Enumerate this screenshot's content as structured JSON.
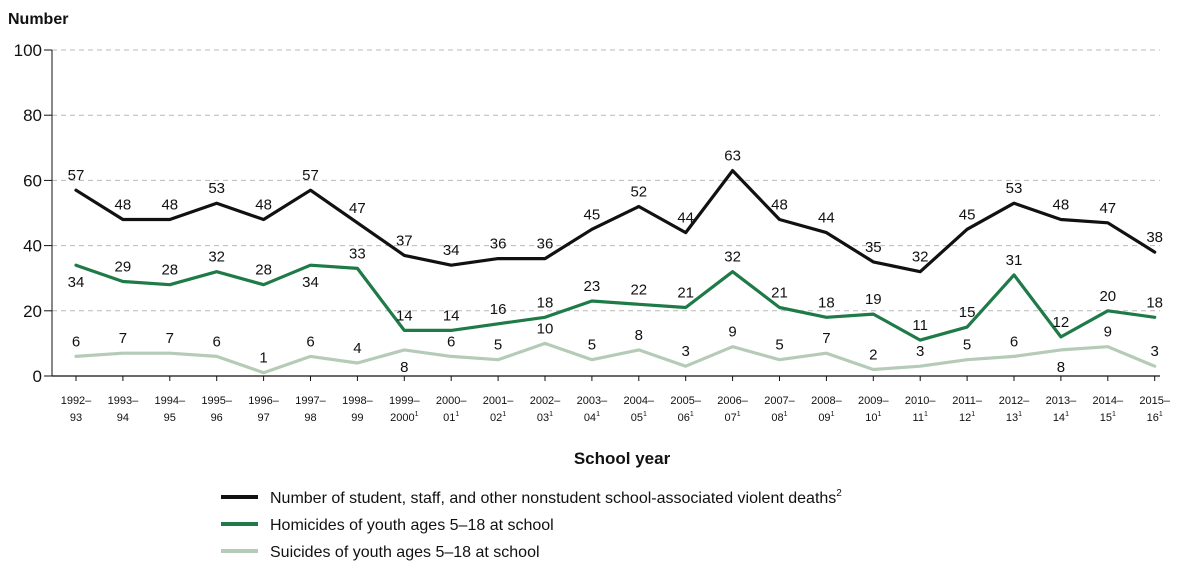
{
  "chart_data": {
    "type": "line",
    "ylabel": "Number",
    "xlabel": "School year",
    "ylim": [
      0,
      100
    ],
    "yticks": [
      "0",
      "20",
      "40",
      "60",
      "80",
      "100"
    ],
    "grid": "horizontal dashed",
    "legend_position": "bottom",
    "categories": [
      [
        "1992–",
        "93"
      ],
      [
        "1993–",
        "94"
      ],
      [
        "1994–",
        "95"
      ],
      [
        "1995–",
        "96"
      ],
      [
        "1996–",
        "97"
      ],
      [
        "1997–",
        "98"
      ],
      [
        "1998–",
        "99"
      ],
      [
        "1999–",
        "2000",
        "1"
      ],
      [
        "2000–",
        "01",
        "1"
      ],
      [
        "2001–",
        "02",
        "1"
      ],
      [
        "2002–",
        "03",
        "1"
      ],
      [
        "2003–",
        "04",
        "1"
      ],
      [
        "2004–",
        "05",
        "1"
      ],
      [
        "2005–",
        "06",
        "1"
      ],
      [
        "2006–",
        "07",
        "1"
      ],
      [
        "2007–",
        "08",
        "1"
      ],
      [
        "2008–",
        "09",
        "1"
      ],
      [
        "2009–",
        "10",
        "1"
      ],
      [
        "2010–",
        "11",
        "1"
      ],
      [
        "2011–",
        "12",
        "1"
      ],
      [
        "2012–",
        "13",
        "1"
      ],
      [
        "2013–",
        "14",
        "1"
      ],
      [
        "2014–",
        "15",
        "1"
      ],
      [
        "2015–",
        "16",
        "1"
      ]
    ],
    "series": [
      {
        "name": "Number of student, staff, and other nonstudent school-associated violent deaths",
        "name_sup": "2",
        "color": "#111111",
        "values": [
          57,
          48,
          48,
          53,
          48,
          57,
          47,
          37,
          34,
          36,
          36,
          45,
          52,
          44,
          63,
          48,
          44,
          35,
          32,
          45,
          53,
          48,
          47,
          38
        ],
        "label_pos": [
          "above",
          "above",
          "above",
          "above",
          "above",
          "above",
          "above",
          "above",
          "above",
          "above",
          "above",
          "above",
          "above",
          "above",
          "above",
          "above",
          "above",
          "above",
          "above",
          "above",
          "above",
          "above",
          "above",
          "above"
        ]
      },
      {
        "name": "Homicides of youth ages 5–18 at school",
        "name_sup": "",
        "color": "#1e7a47",
        "values": [
          34,
          29,
          28,
          32,
          28,
          34,
          33,
          14,
          14,
          16,
          18,
          23,
          22,
          21,
          32,
          21,
          18,
          19,
          11,
          15,
          31,
          12,
          20,
          18
        ],
        "label_pos": [
          "below",
          "above",
          "above",
          "above",
          "above",
          "below",
          "above",
          "above",
          "above",
          "above",
          "above",
          "above",
          "above",
          "above",
          "above",
          "above",
          "above",
          "above",
          "above",
          "above",
          "above",
          "above",
          "above",
          "above"
        ]
      },
      {
        "name": "Suicides of youth ages 5–18 at school",
        "name_sup": "",
        "color": "#b5cbb8",
        "values": [
          6,
          7,
          7,
          6,
          1,
          6,
          4,
          8,
          6,
          5,
          10,
          5,
          8,
          3,
          9,
          5,
          7,
          2,
          3,
          5,
          6,
          8,
          9,
          3
        ],
        "label_pos": [
          "above",
          "above",
          "above",
          "above",
          "above",
          "above",
          "above",
          "below",
          "above",
          "above",
          "above",
          "above",
          "above",
          "above",
          "above",
          "above",
          "above",
          "above",
          "above",
          "above",
          "above",
          "below",
          "above",
          "above"
        ]
      }
    ]
  }
}
